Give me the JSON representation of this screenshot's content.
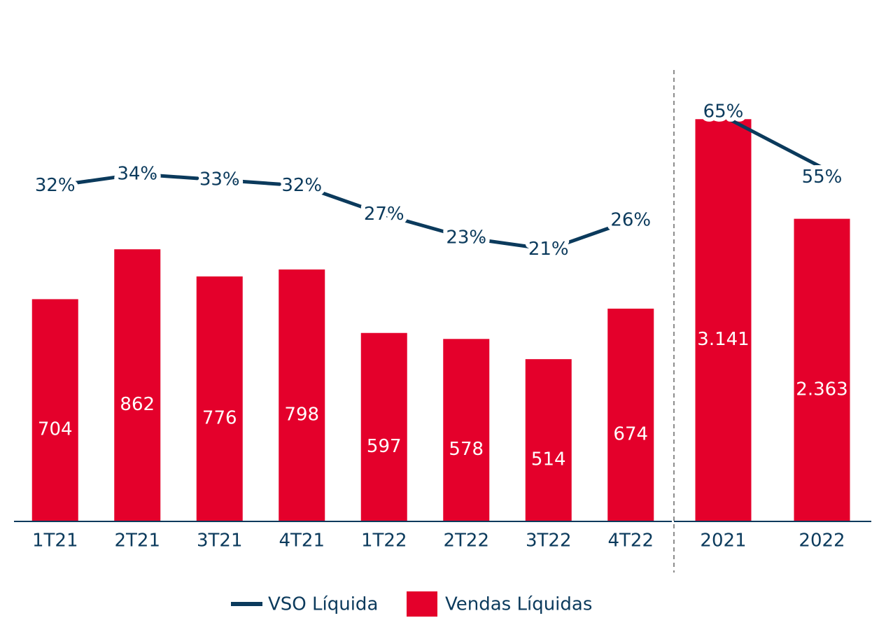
{
  "chart_data": [
    {
      "type": "bar-line",
      "categories": [
        "1T21",
        "2T21",
        "3T21",
        "4T21",
        "1T22",
        "2T22",
        "3T22",
        "4T22"
      ],
      "series": [
        {
          "name": "Vendas Líquidas",
          "color": "#e4002b",
          "values": [
            704,
            862,
            776,
            798,
            597,
            578,
            514,
            674
          ]
        },
        {
          "name": "VSO Líquida",
          "color": "#0b3a5c",
          "axis": "y2",
          "values": [
            32,
            34,
            33,
            32,
            27,
            23,
            21,
            26
          ],
          "value_labels": [
            "32%",
            "34%",
            "33%",
            "32%",
            "27%",
            "23%",
            "21%",
            "26%"
          ]
        }
      ],
      "ylim": [
        0,
        1430
      ],
      "y2lim": [
        -26,
        52
      ]
    },
    {
      "type": "bar-line",
      "categories": [
        "2021",
        "2022"
      ],
      "series": [
        {
          "color": "#e4002b",
          "values": [
            3141,
            2363
          ],
          "value_labels": [
            "3.141",
            "2.363"
          ]
        },
        {
          "color": "#0b3a5c",
          "axis": "y2",
          "values": [
            65,
            55
          ],
          "value_labels": [
            "65%",
            "55%"
          ]
        }
      ],
      "ylim": [
        0,
        3525
      ],
      "y2lim": [
        -14,
        74
      ]
    }
  ]
}
